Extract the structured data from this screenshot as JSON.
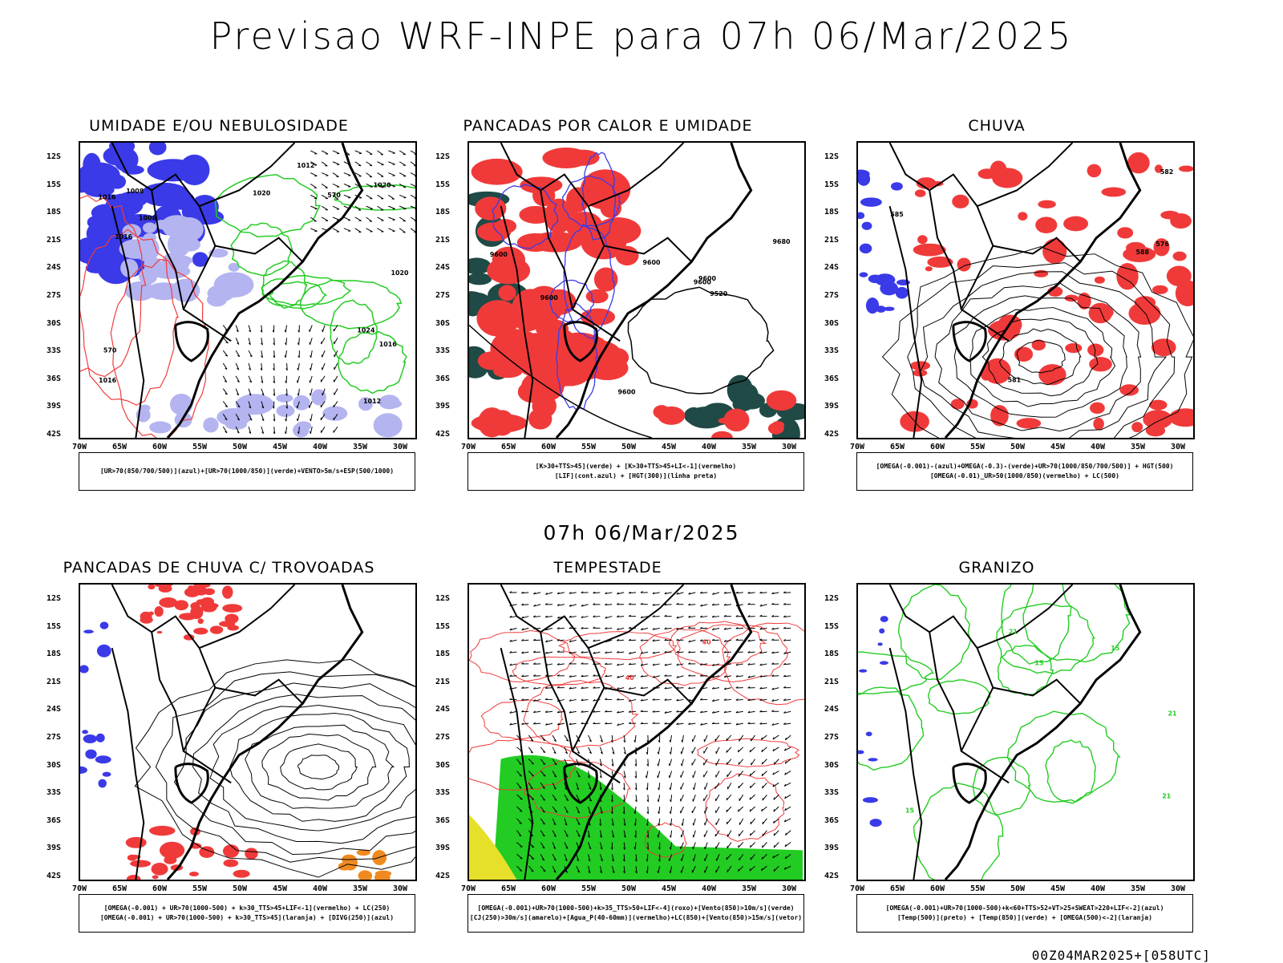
{
  "header": {
    "title": "Previsao WRF-INPE  para 07h 06/Mar/2025"
  },
  "middle": {
    "title": "07h 06/Mar/2025"
  },
  "footer": {
    "run": "00Z04MAR2025+[058UTC]"
  },
  "axes": {
    "lat_labels": [
      "12S",
      "15S",
      "18S",
      "21S",
      "24S",
      "27S",
      "30S",
      "33S",
      "36S",
      "39S",
      "42S"
    ],
    "lon_labels": [
      "70W",
      "65W",
      "60W",
      "55W",
      "50W",
      "45W",
      "40W",
      "35W",
      "30W"
    ]
  },
  "panels": [
    {
      "title": "UMIDADE E/OU NEBULOSIDADE",
      "legend": [
        "[UR>70(850/700/500)](azul)+[UR>70(1000/850)](verde)+VENTO>5m/s+ESP(500/1000)"
      ],
      "contours": [
        "1016",
        "1012",
        "1016",
        "1020",
        "1020",
        "1016",
        "1008",
        "1008",
        "1012",
        "1016",
        "1024",
        "1020",
        "570",
        "570"
      ]
    },
    {
      "title": "PANCADAS POR CALOR E UMIDADE",
      "legend": [
        "[K>30+TTS>45](verde) + [K>30+TTS>45+LI<-1](vermelho)",
        "[LIF](cont.azul) + [HGT(300)](linha preta)"
      ],
      "contours": [
        "9600",
        "9600",
        "9600",
        "9600",
        "9680",
        "9600",
        "9520",
        "9600"
      ]
    },
    {
      "title": "CHUVA",
      "legend": [
        "[OMEGA(-0.001)-(azul)+OMEGA(-0.3)-(verde)+UR>70(1000/850/700/500)] + HGT(500)",
        "[OMEGA(-0.01)_UR>50(1000/850)(vermelho) + LC(500)"
      ],
      "contours": [
        "582",
        "585",
        "581",
        "588",
        "576"
      ]
    },
    {
      "title": "PANCADAS DE CHUVA C/ TROVOADAS",
      "legend": [
        "[OMEGA(-0.001) + UR>70(1000-500) + k>30_TTS>45+LIF<-1](vermelho) + LC(250)",
        "[OMEGA(-0.001) + UR>70(1000-500) + k>30_TTS>45](laranja) + [DIVG(250)](azul)"
      ],
      "contours": []
    },
    {
      "title": "TEMPESTADE",
      "legend": [
        "[OMEGA(-0.001)+UR>70(1000-500)+k>35_TTS>50+LIF<-4](roxo)+[Vento(850)>10m/s](verde)",
        "[CJ(250)>30m/s](amarelo)+[Agua_P(40-60mm)](vermelho)+LC(850)+[Vento(850)>15m/s](vetor)"
      ],
      "contours": [
        "40",
        "40"
      ]
    },
    {
      "title": "GRANIZO",
      "legend": [
        "[OMEGA(-0.001)+UR>70(1000-500)+k<60+TTS>52+VT>25+SWEAT>220+LIF<-2](azul)",
        "[Temp(500)](preto) + [Temp(850)](verde) + [OMEGA(500)<-2](laranja)"
      ],
      "contours": [
        "15",
        "15",
        "21",
        "21",
        "21",
        "15"
      ]
    }
  ],
  "colors": {
    "blue": "#3a3ae8",
    "lightblue": "#b4b4f0",
    "green": "#22cc22",
    "red": "#f03a3a",
    "darkteal": "#1f4a46",
    "yellow": "#e6e02a",
    "orange": "#f08a20"
  }
}
